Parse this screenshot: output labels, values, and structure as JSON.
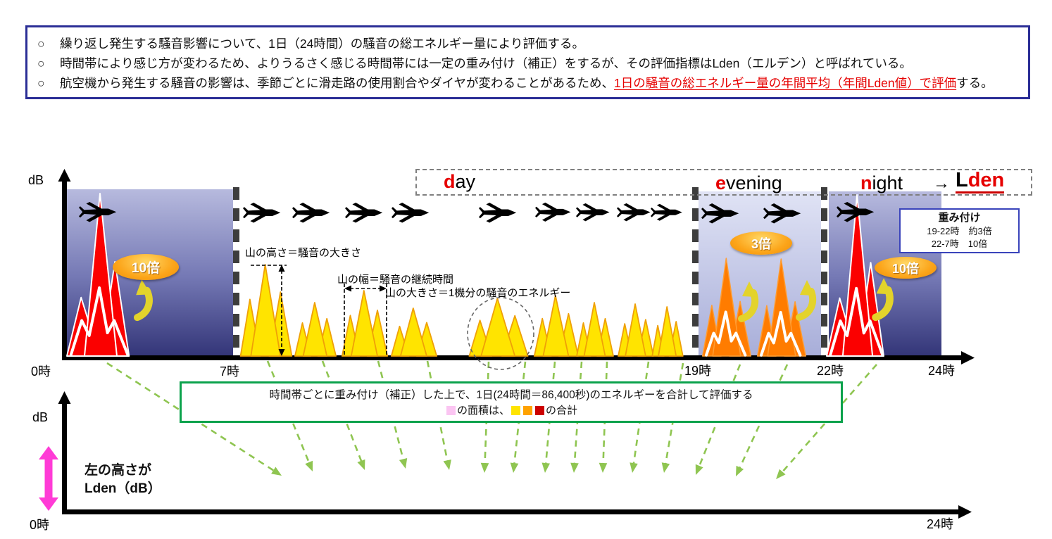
{
  "colors": {
    "accent_red": "#e60000",
    "intro_border": "#2b2e96",
    "weight_border": "#3a44bb",
    "green_border": "#0ba24c",
    "green_arrow": "#8fc551",
    "yellow_peak": "#ffe400",
    "orange_peak": "#ff7c00",
    "red_peak": "#fb0000",
    "pink_area": "#fad2f6",
    "magenta_arrow": "#ff3bd6",
    "badge_orange": "#f59d00",
    "curved_arrow": "#e3d32b",
    "legend_pink": "#fbc5f2",
    "legend_yellow": "#ffe400",
    "legend_orange": "#ffa200",
    "legend_red": "#cc0000"
  },
  "intro": {
    "bullet_mark": "○",
    "b1": "繰り返し発生する騒音影響について、1日（24時間）の騒音の総エネルギー量により評価する。",
    "b2": "時間帯により感じ方が変わるため、よりうるさく感じる時間帯には一定の重み付け（補正）をするが、その評価指標はLden（エルデン）と呼ばれている。",
    "b3_pre": "航空機から発生する騒音の影響は、季節ごとに滑走路の使用割合やダイヤが変わることがあるため、",
    "b3_red": "1日の騒音の総エネルギー量の年間平均（年間Lden値）で評価",
    "b3_post": "する。"
  },
  "top_chart": {
    "y_label": "dB",
    "ticks": {
      "t0": "0時",
      "t7": "7時",
      "t19": "19時",
      "t22": "22時",
      "t24": "24時"
    },
    "periods": {
      "day_head": "d",
      "day_tail": "ay",
      "evening_head": "e",
      "evening_tail": "vening",
      "night_head": "n",
      "night_tail": "ight",
      "arrow": "→",
      "lden_head": "L",
      "lden_tail": "den"
    },
    "badges": {
      "night_early": "10倍",
      "evening": "3倍",
      "night_late": "10倍"
    },
    "weight_box": {
      "title": "重み付け",
      "row1": "19-22時　約3倍",
      "row2": "22-7時　10倍"
    },
    "annotations": {
      "peak_height": "山の高さ＝騒音の大きさ",
      "peak_width": "山の幅＝騒音の継続時間",
      "peak_size": "山の大きさ＝1機分の騒音のエネルギー"
    }
  },
  "summary_box": {
    "line1": "時間帯ごとに重み付け（補正）した上で、1日(24時間＝86,400秒)のエネルギーを合計して評価する",
    "line2_area": "の面積は、",
    "line2_total": "の合計"
  },
  "bottom_chart": {
    "y_label": "dB",
    "ticks": {
      "t0": "0時",
      "t24": "24時"
    },
    "area_label_1": "左の高さが",
    "area_label_2": "Lden（dB）"
  }
}
